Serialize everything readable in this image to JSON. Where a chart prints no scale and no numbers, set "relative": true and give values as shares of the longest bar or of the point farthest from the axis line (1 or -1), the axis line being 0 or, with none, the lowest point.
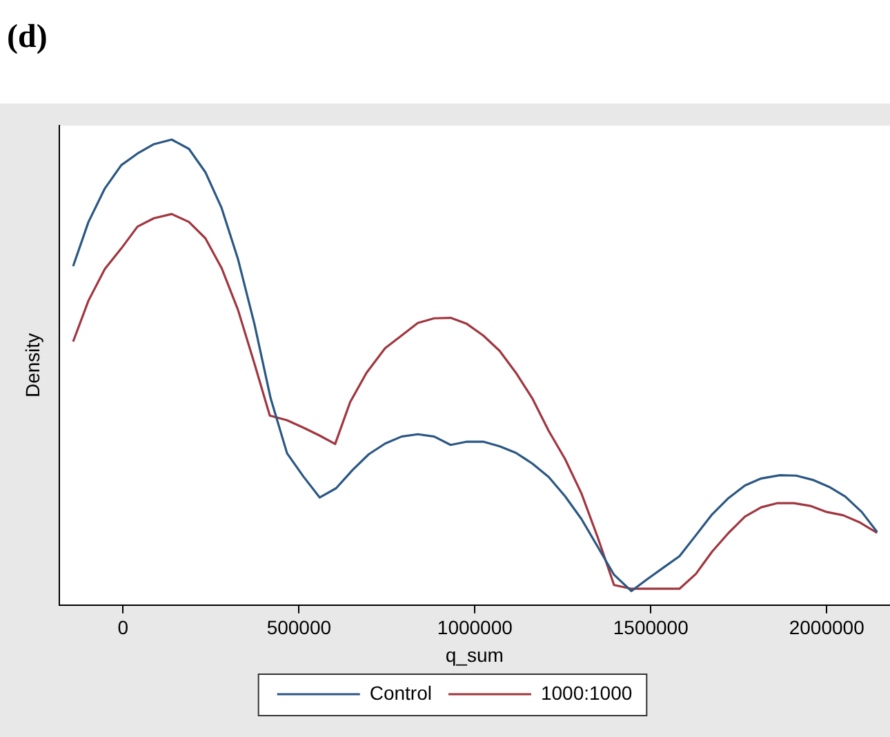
{
  "chart_data": {
    "type": "line",
    "title": "(d)",
    "xlabel": "q_sum",
    "ylabel": "Density",
    "relative": true,
    "xlim": [
      -182000,
      2180000
    ],
    "xticks": [
      0,
      500000,
      1000000,
      1500000,
      2000000
    ],
    "grid": false,
    "legend": "bottom",
    "marker": "none",
    "line_style": "solid",
    "series": [
      {
        "name": "Control",
        "color": "#2a5783",
        "x": [
          -142000,
          -98400,
          -51800,
          -5200,
          41000,
          87600,
          138200,
          187200,
          233900,
          280100,
          326700,
          373300,
          419500,
          466100,
          512700,
          559000,
          605600,
          652200,
          698400,
          745000,
          791600,
          837800,
          884400,
          931100,
          977300,
          1023900,
          1070500,
          1116700,
          1163300,
          1209900,
          1256200,
          1302800,
          1349400,
          1395600,
          1445000,
          1488800,
          1535000,
          1581600,
          1628300,
          1674500,
          1721100,
          1767700,
          1814000,
          1867300,
          1913500,
          1960100,
          2006700,
          2053000,
          2099600,
          2143400
        ],
        "values": [
          0.728,
          0.823,
          0.895,
          0.945,
          0.97,
          0.99,
          1.0,
          0.98,
          0.93,
          0.853,
          0.743,
          0.604,
          0.444,
          0.326,
          0.276,
          0.231,
          0.251,
          0.29,
          0.324,
          0.347,
          0.362,
          0.367,
          0.362,
          0.344,
          0.351,
          0.351,
          0.341,
          0.327,
          0.304,
          0.275,
          0.234,
          0.185,
          0.125,
          0.065,
          0.03,
          0.055,
          0.08,
          0.105,
          0.15,
          0.195,
          0.23,
          0.257,
          0.272,
          0.279,
          0.278,
          0.269,
          0.254,
          0.233,
          0.2,
          0.157
        ]
      },
      {
        "name": "1000:1000",
        "color": "#a0363f",
        "x": [
          -142000,
          -98400,
          -51800,
          -5200,
          41000,
          87600,
          138200,
          187200,
          233900,
          280100,
          326700,
          373300,
          417100,
          466100,
          512700,
          559000,
          602800,
          645400,
          692000,
          745000,
          791600,
          837800,
          884400,
          931100,
          977300,
          1023900,
          1070500,
          1116700,
          1163300,
          1209900,
          1256200,
          1302800,
          1349400,
          1395600,
          1445000,
          1495200,
          1581600,
          1628300,
          1674500,
          1721100,
          1767700,
          1814000,
          1860500,
          1907100,
          1953400,
          2000000,
          2046600,
          2092800,
          2143400
        ],
        "values": [
          0.566,
          0.654,
          0.722,
          0.766,
          0.813,
          0.831,
          0.84,
          0.823,
          0.788,
          0.724,
          0.634,
          0.519,
          0.407,
          0.397,
          0.381,
          0.364,
          0.346,
          0.436,
          0.499,
          0.552,
          0.579,
          0.606,
          0.616,
          0.617,
          0.604,
          0.579,
          0.546,
          0.499,
          0.444,
          0.374,
          0.314,
          0.24,
          0.145,
          0.043,
          0.035,
          0.035,
          0.035,
          0.067,
          0.115,
          0.155,
          0.19,
          0.21,
          0.219,
          0.219,
          0.213,
          0.2,
          0.193,
          0.178,
          0.155
        ]
      }
    ]
  }
}
